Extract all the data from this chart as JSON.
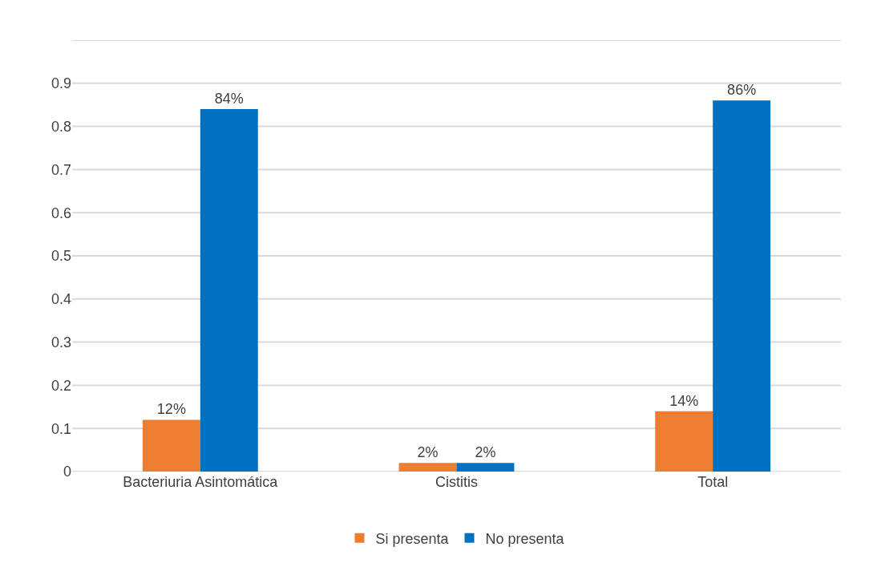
{
  "chart_data": {
    "type": "bar",
    "categories": [
      "Bacteriuria Asintomática",
      "Cistitis",
      "Total"
    ],
    "series": [
      {
        "name": "Si presenta",
        "color": "#ed7d31",
        "values": [
          0.12,
          0.02,
          0.14
        ],
        "value_labels": [
          "12%",
          "2%",
          "14%"
        ]
      },
      {
        "name": "No presenta",
        "color": "#0070c0",
        "values": [
          0.84,
          0.02,
          0.86
        ],
        "value_labels": [
          "84%",
          "2%",
          "86%"
        ]
      }
    ],
    "ylim": [
      0,
      1
    ],
    "yticks": [
      0,
      0.1,
      0.2,
      0.3,
      0.4,
      0.5,
      0.6,
      0.7,
      0.8,
      0.9,
      {
        "value": 1,
        "label": null
      }
    ],
    "grid": "y",
    "legend": "bottom"
  }
}
